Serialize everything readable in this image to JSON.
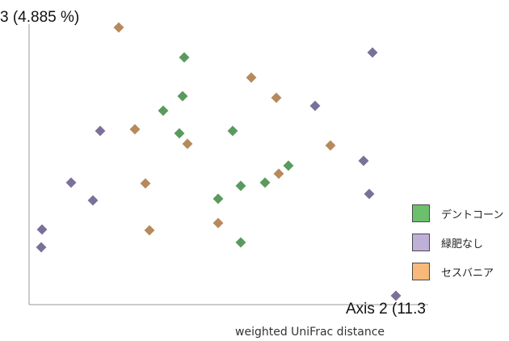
{
  "chart_data": {
    "type": "scatter",
    "title": "",
    "ylabel": "3 (4.885 %)",
    "xlabel": "Axis 2 (11.3",
    "caption": "weighted UniFrac distance",
    "grid": false,
    "legend_position": "right",
    "series": [
      {
        "name": "デントコーン",
        "color": "#5a9a5e",
        "points": [
          [
            228,
            71
          ],
          [
            226,
            119
          ],
          [
            202,
            137
          ],
          [
            222,
            165
          ],
          [
            288,
            162
          ],
          [
            357,
            205
          ],
          [
            328,
            226
          ],
          [
            298,
            230
          ],
          [
            270,
            246
          ],
          [
            298,
            300
          ]
        ]
      },
      {
        "name": "緑肥なし",
        "color": "#7b7099",
        "points": [
          [
            461,
            65
          ],
          [
            390,
            131
          ],
          [
            124,
            162
          ],
          [
            450,
            199
          ],
          [
            88,
            226
          ],
          [
            457,
            240
          ],
          [
            115,
            248
          ],
          [
            52,
            284
          ],
          [
            51,
            306
          ],
          [
            490,
            366
          ]
        ]
      },
      {
        "name": "セスバニア",
        "color": "#b68a5c",
        "points": [
          [
            147,
            34
          ],
          [
            311,
            96
          ],
          [
            342,
            121
          ],
          [
            167,
            160
          ],
          [
            232,
            178
          ],
          [
            409,
            180
          ],
          [
            345,
            215
          ],
          [
            180,
            227
          ],
          [
            270,
            276
          ],
          [
            185,
            285
          ]
        ]
      }
    ],
    "legend_swatch_colors": [
      "#6bc06b",
      "#bfb0d8",
      "#f9b97a"
    ]
  }
}
